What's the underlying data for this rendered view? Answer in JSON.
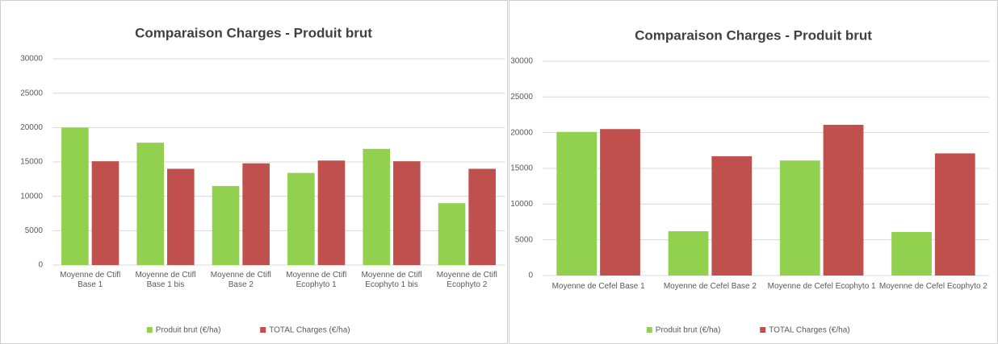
{
  "chart_data": [
    {
      "type": "bar",
      "title": "Comparaison Charges - Produit brut",
      "categories": [
        "Moyenne de Ctifl  Base 1",
        "Moyenne de Ctifl Base 1 bis",
        "Moyenne de Ctifl Base 2",
        "Moyenne de Ctifl Ecophyto 1",
        "Moyenne de Ctifl  Ecophyto 1 bis",
        "Moyenne de Ctifl Ecophyto 2"
      ],
      "series": [
        {
          "name": "Produit brut (€/ha)",
          "color": "#92d050",
          "values": [
            20000,
            17800,
            11500,
            13400,
            16900,
            9000
          ]
        },
        {
          "name": "TOTAL Charges (€/ha)",
          "color": "#c0504d",
          "values": [
            15100,
            14000,
            14800,
            15200,
            15100,
            14000
          ]
        }
      ],
      "ylim": [
        0,
        30000
      ],
      "yticks": [
        0,
        5000,
        10000,
        15000,
        20000,
        25000,
        30000
      ],
      "grid": true,
      "legend": "bottom"
    },
    {
      "type": "bar",
      "title": "Comparaison Charges - Produit brut",
      "categories": [
        "Moyenne de Cefel Base 1",
        "Moyenne de Cefel Base 2",
        "Moyenne de Cefel Ecophyto 1",
        "Moyenne de Cefel Ecophyto 2"
      ],
      "series": [
        {
          "name": "Produit brut (€/ha)",
          "color": "#92d050",
          "values": [
            20100,
            6200,
            16100,
            6100
          ]
        },
        {
          "name": "TOTAL Charges (€/ha)",
          "color": "#c0504d",
          "values": [
            20500,
            16700,
            21100,
            17100
          ]
        }
      ],
      "ylim": [
        0,
        30000
      ],
      "yticks": [
        0,
        5000,
        10000,
        15000,
        20000,
        25000,
        30000
      ],
      "grid": true,
      "legend": "bottom"
    }
  ]
}
